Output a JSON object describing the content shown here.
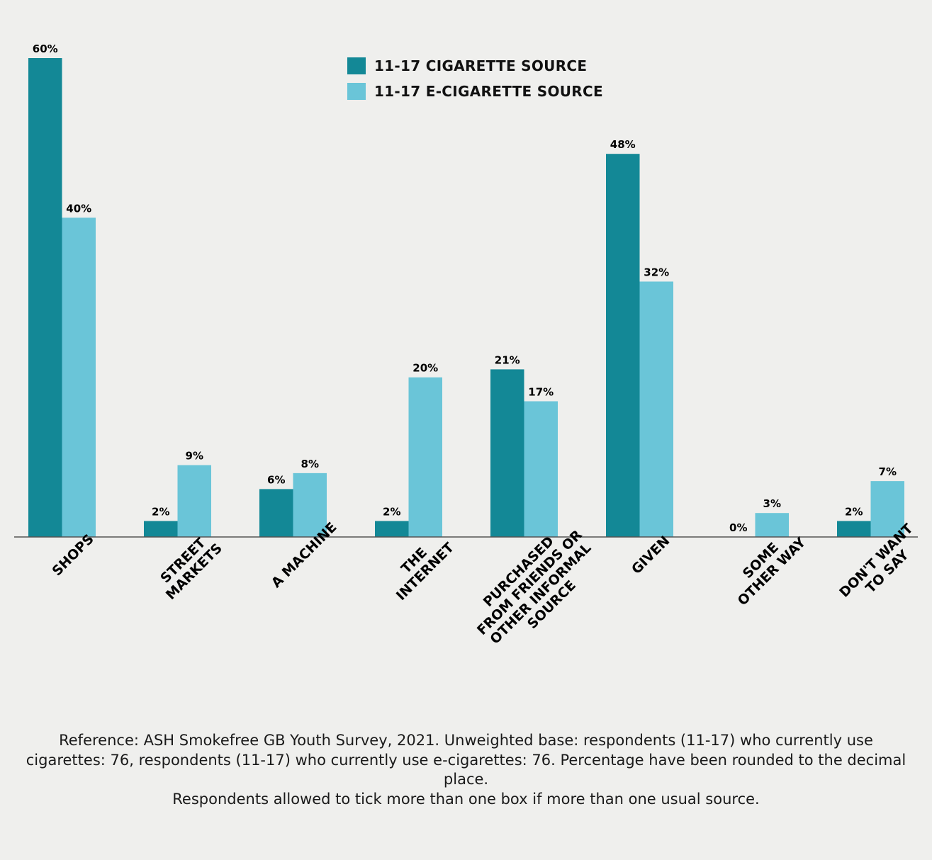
{
  "chart_data": {
    "type": "bar",
    "categories": [
      [
        "SHOPS"
      ],
      [
        "STREET",
        "MARKETS"
      ],
      [
        "A MACHINE"
      ],
      [
        "THE",
        "INTERNET"
      ],
      [
        "PURCHASED",
        "FROM FRIENDS OR",
        "OTHER INFORMAL",
        "SOURCE"
      ],
      [
        "GIVEN"
      ],
      [
        "SOME",
        "OTHER WAY"
      ],
      [
        "DON'T WANT",
        "TO SAY"
      ]
    ],
    "series": [
      {
        "name": "11-17 CIGARETTE SOURCE",
        "color": "#138896",
        "values": [
          60,
          2,
          6,
          2,
          21,
          48,
          0,
          2
        ],
        "labels": [
          "60%",
          "2%",
          "6%",
          "2%",
          "21%",
          "48%",
          "0%",
          "2%"
        ]
      },
      {
        "name": "11-17 E-CIGARETTE SOURCE",
        "color": "#6ac5d8",
        "values": [
          40,
          9,
          8,
          20,
          17,
          32,
          3,
          7
        ],
        "labels": [
          "40%",
          "9%",
          "8%",
          "20%",
          "17%",
          "32%",
          "3%",
          "7%"
        ]
      }
    ],
    "ylim": [
      0,
      60
    ],
    "legend_position": "top-center",
    "grid": false
  },
  "footnote": {
    "line1": "Reference: ASH Smokefree GB Youth Survey, 2021. Unweighted base: respondents (11-17) who currently use cigarettes: 76, respondents (11-17) who currently use e-cigarettes: 76. Percentage have been rounded to the decimal place.",
    "line2": "Respondents allowed to tick more than one box if more than one usual source."
  }
}
